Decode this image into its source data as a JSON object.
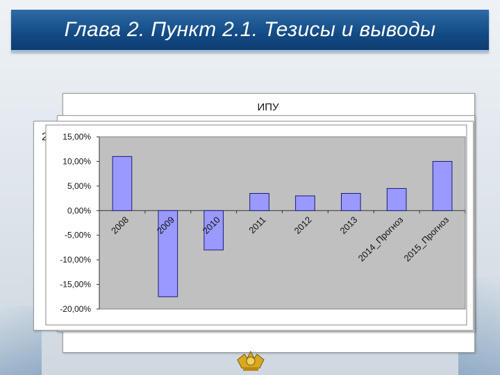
{
  "slide": {
    "title": "Глава 2. Пункт 2.1. Тезисы и выводы",
    "partial_label": "2"
  },
  "colors": {
    "title_bar": "#134b86",
    "plot_area": "#c0c0c0",
    "bar_fill": "#9999ff",
    "bar_stroke": "#1a1a7a"
  },
  "chart_data": {
    "type": "bar",
    "title": "ИПУ",
    "categories": [
      "2008",
      "2009",
      "2010",
      "2011",
      "2012",
      "2013",
      "2014_Прогноз",
      "2015_Прогноз"
    ],
    "values": [
      11.0,
      -17.5,
      -8.0,
      3.5,
      3.0,
      3.5,
      4.5,
      10.0
    ],
    "ylim": [
      -20,
      15
    ],
    "y_ticks": [
      15,
      10,
      5,
      0,
      -5,
      -10,
      -15,
      -20
    ],
    "y_tick_labels": [
      "15,00%",
      "10,00%",
      "5,00%",
      "0,00%",
      "-5,00%",
      "-10,00%",
      "-15,00%",
      "-20,00%"
    ],
    "xlabel": "",
    "ylabel": "",
    "grid": false,
    "legend": "none"
  }
}
